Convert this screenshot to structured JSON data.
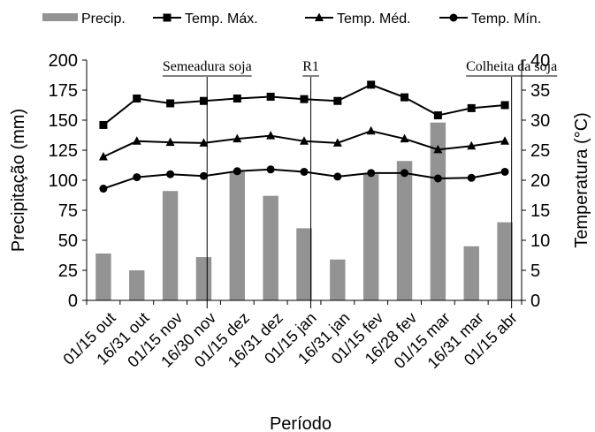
{
  "chart_data": {
    "type": "bar-line-combo",
    "xlabel": "Período",
    "ylabel_left": "Precipitação (mm)",
    "ylabel_right": "Temperatura (°C)",
    "ylim_left": [
      0,
      200
    ],
    "yticks_left": [
      "0",
      "25",
      "50",
      "75",
      "100",
      "125",
      "150",
      "175",
      "200"
    ],
    "ylim_right": [
      0,
      40
    ],
    "yticks_right": [
      "0",
      "5",
      "10",
      "15",
      "20",
      "25",
      "30",
      "35",
      "40"
    ],
    "grid": false,
    "legend_position": "top",
    "categories": [
      "01/15 out",
      "16/31 out",
      "01/15 nov",
      "16/30 nov",
      "01/15 dez",
      "16/31 dez",
      "01/15 jan",
      "16/31 jan",
      "01/15 fev",
      "16/28 fev",
      "01/15 mar",
      "16/31 mar",
      "01/15 abr"
    ],
    "bar_series": {
      "name": "Precip.",
      "color": "#939393",
      "values": [
        39,
        25,
        91,
        36,
        107,
        87,
        60,
        34,
        105,
        116,
        148,
        45,
        65
      ]
    },
    "line_series": [
      {
        "name": "Temp. Máx.",
        "marker": "square",
        "color": "#000000",
        "values": [
          29.2,
          33.6,
          32.8,
          33.2,
          33.6,
          33.9,
          33.5,
          33.2,
          35.9,
          33.8,
          30.8,
          32.0,
          32.5
        ]
      },
      {
        "name": "Temp. Méd.",
        "marker": "triangle",
        "color": "#000000",
        "values": [
          23.9,
          26.5,
          26.3,
          26.2,
          26.9,
          27.4,
          26.5,
          26.2,
          28.2,
          26.9,
          25.1,
          25.7,
          26.5
        ]
      },
      {
        "name": "Temp. Mín.",
        "marker": "circle",
        "color": "#000000",
        "values": [
          18.6,
          20.5,
          21.0,
          20.7,
          21.5,
          21.8,
          21.4,
          20.6,
          21.2,
          21.2,
          20.3,
          20.4,
          21.4
        ]
      }
    ],
    "annotations": [
      {
        "text": "Semeadura soja",
        "category_index": 3.1
      },
      {
        "text": "R1",
        "category_index": 6.2
      },
      {
        "text": "Colheita da soja",
        "category_index": 12.2
      }
    ]
  }
}
